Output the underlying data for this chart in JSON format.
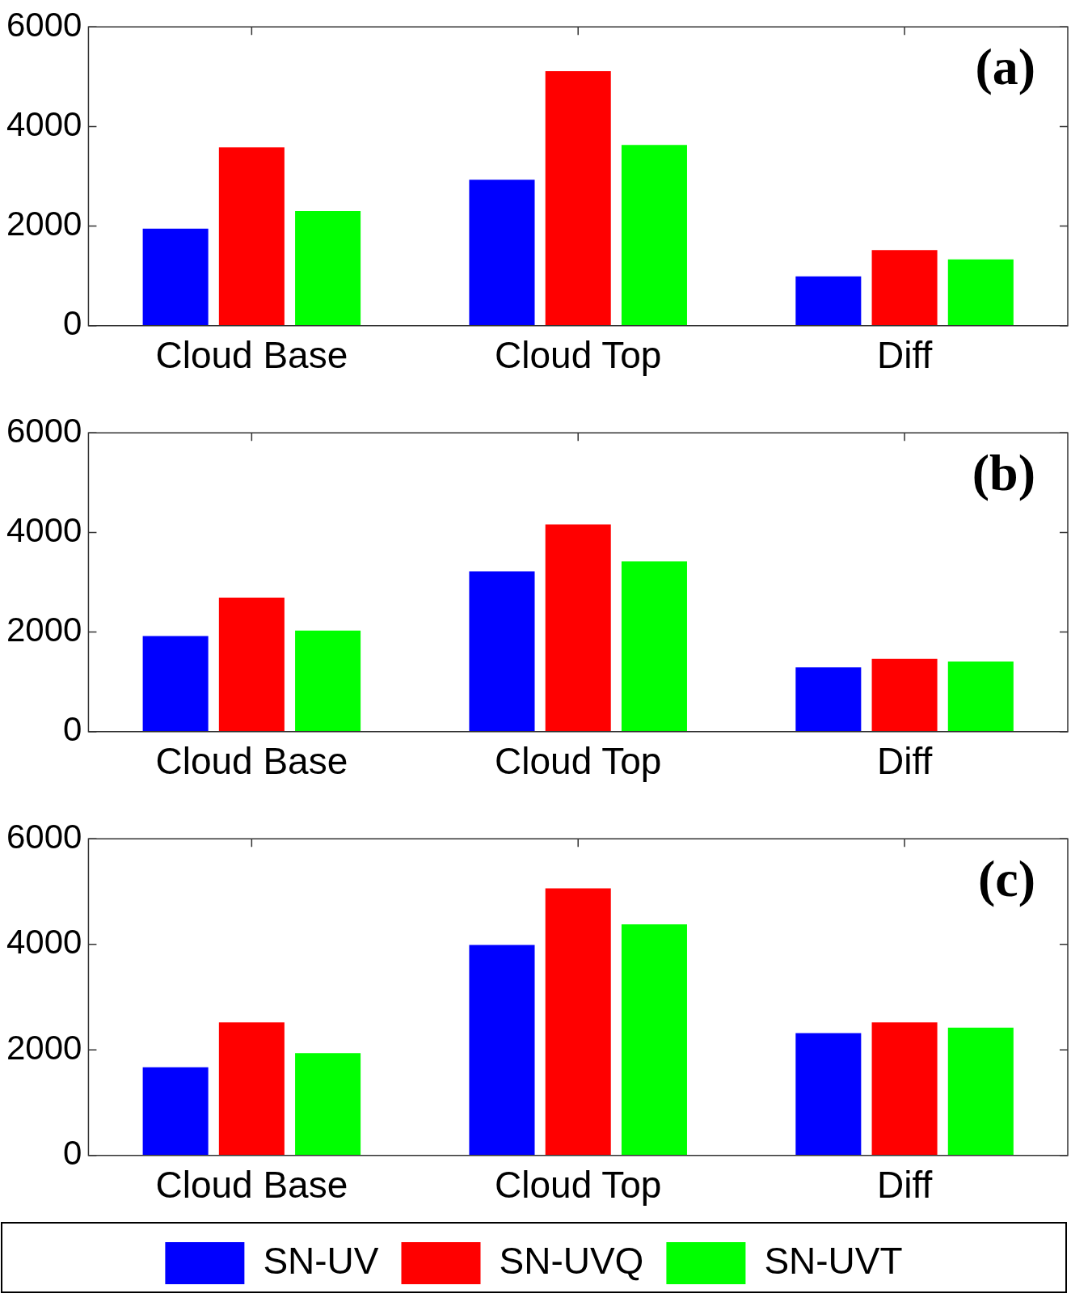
{
  "chart_data": [
    {
      "type": "bar",
      "annotations": [
        "(a)"
      ],
      "categories": [
        "Cloud Base",
        "Cloud Top",
        "Diff"
      ],
      "ylim": [
        0,
        6000
      ],
      "yticks": [
        0,
        2000,
        4000,
        6000
      ],
      "grid": false,
      "legend": false,
      "series": [
        {
          "color": "#0000ff",
          "values": [
            1950,
            2930,
            990
          ]
        },
        {
          "color": "#ff0000",
          "values": [
            3580,
            5110,
            1520
          ]
        },
        {
          "color": "#00ff00",
          "values": [
            2300,
            3630,
            1330
          ]
        }
      ]
    },
    {
      "type": "bar",
      "annotations": [
        "(b)"
      ],
      "categories": [
        "Cloud Base",
        "Cloud Top",
        "Diff"
      ],
      "ylim": [
        0,
        6000
      ],
      "yticks": [
        0,
        2000,
        4000,
        6000
      ],
      "grid": false,
      "legend": false,
      "series": [
        {
          "color": "#0000ff",
          "values": [
            1920,
            3220,
            1290
          ]
        },
        {
          "color": "#ff0000",
          "values": [
            2690,
            4160,
            1460
          ]
        },
        {
          "color": "#00ff00",
          "values": [
            2030,
            3420,
            1410
          ]
        }
      ]
    },
    {
      "type": "bar",
      "annotations": [
        "(c)"
      ],
      "categories": [
        "Cloud Base",
        "Cloud Top",
        "Diff"
      ],
      "ylim": [
        0,
        6000
      ],
      "yticks": [
        0,
        2000,
        4000,
        6000
      ],
      "grid": false,
      "legend": "bottom",
      "series": [
        {
          "name": "SN-UV",
          "color": "#0000ff",
          "values": [
            1670,
            3990,
            2320
          ]
        },
        {
          "name": "SN-UVQ",
          "color": "#ff0000",
          "values": [
            2520,
            5060,
            2520
          ]
        },
        {
          "name": "SN-UVT",
          "color": "#00ff00",
          "values": [
            1940,
            4380,
            2420
          ]
        }
      ]
    }
  ]
}
